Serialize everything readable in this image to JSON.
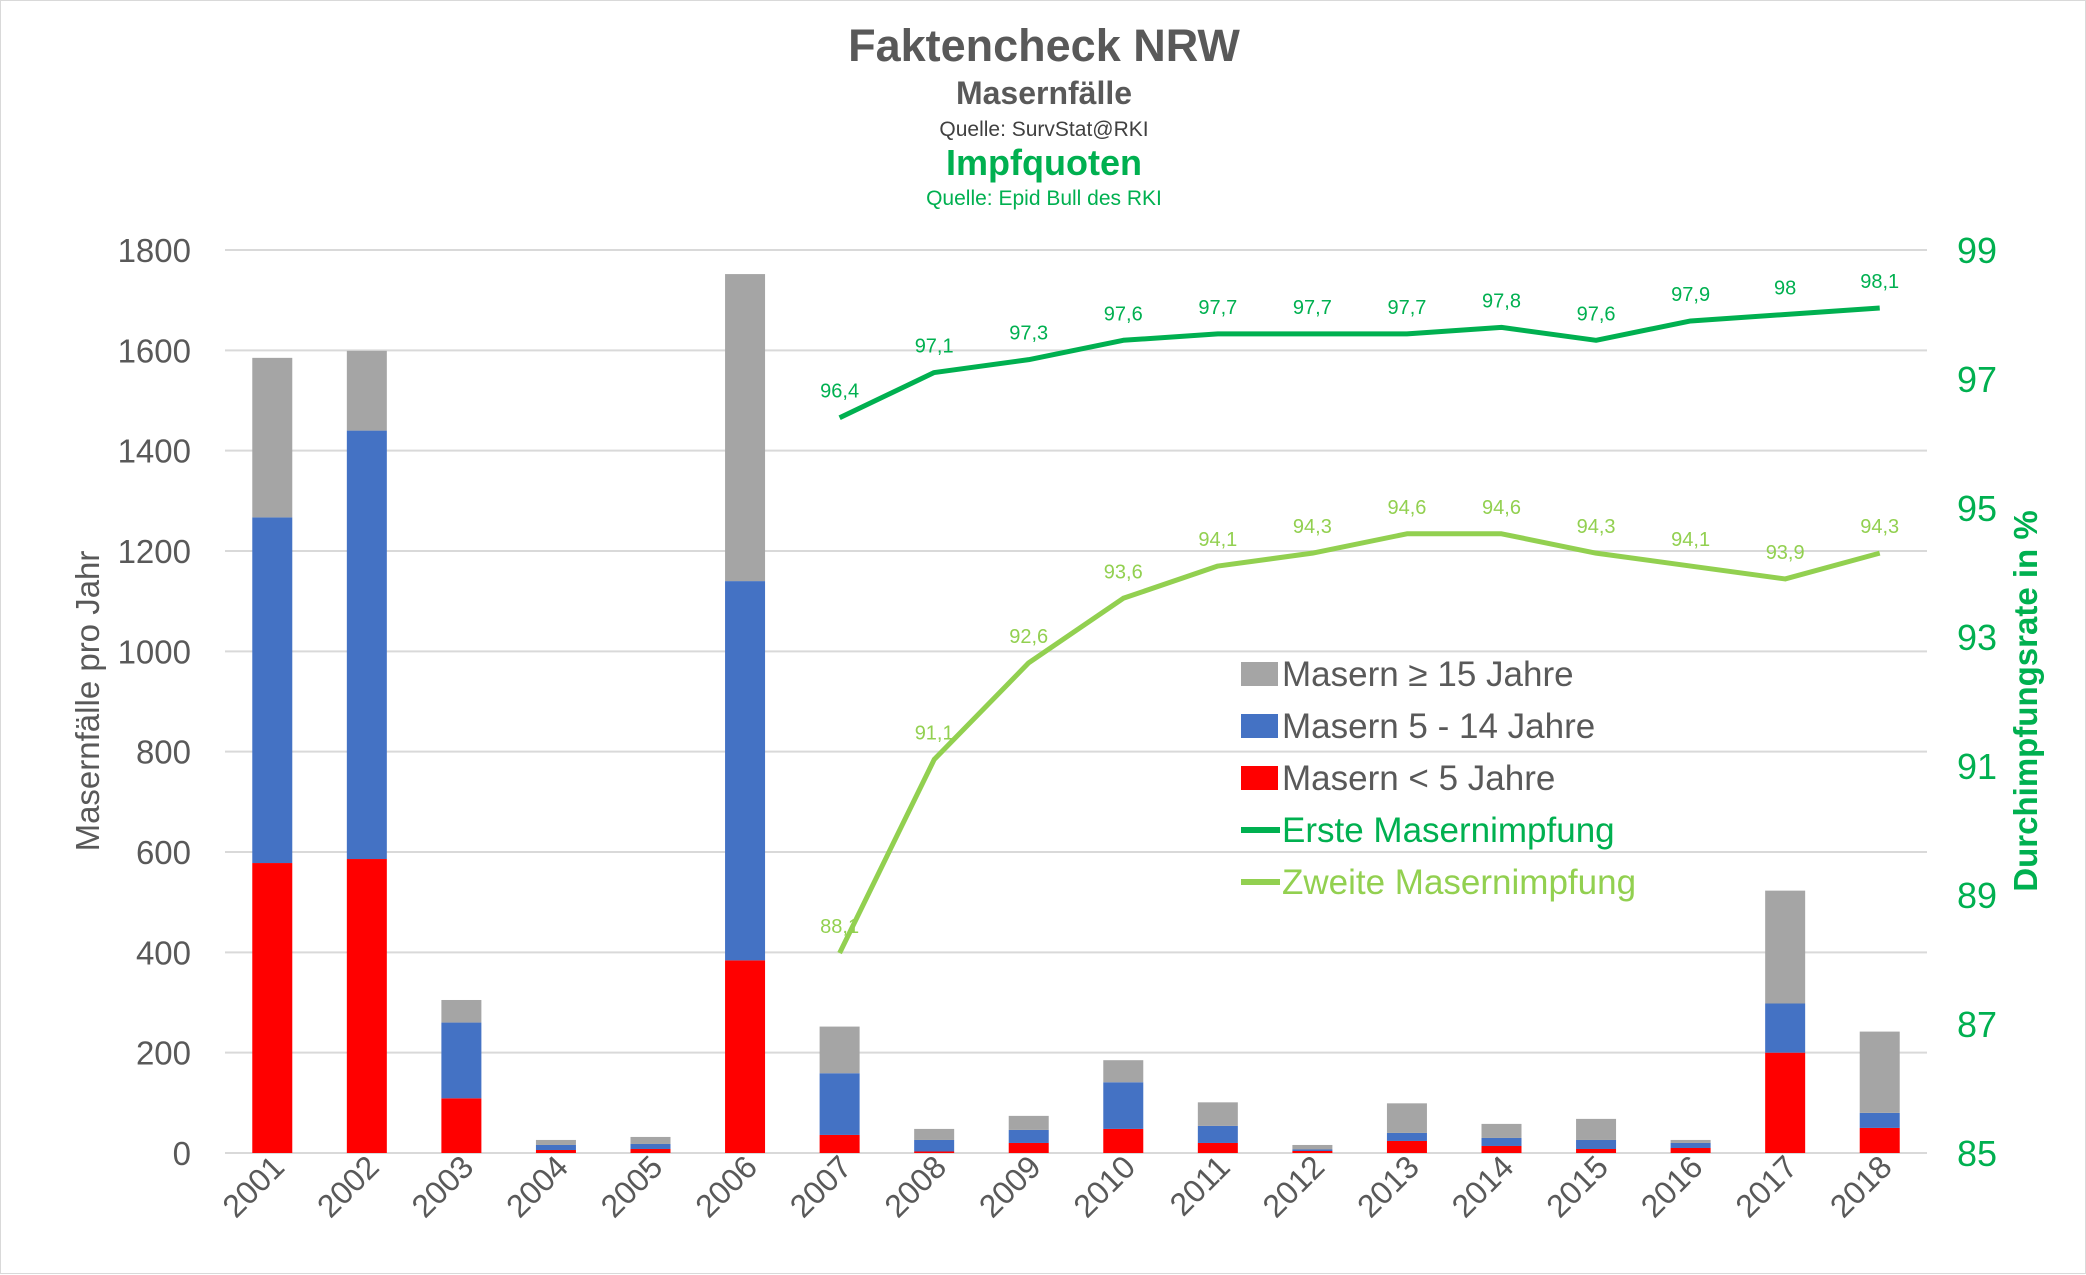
{
  "chart_data": {
    "type": "bar",
    "title": "Faktencheck NRW",
    "subtitle_1": "Masernfälle",
    "source_1": "Quelle: SurvStat@RKI",
    "subtitle_2": "Impfquoten",
    "source_2": "Quelle: Epid Bull des RKI",
    "ylabel": "Masernfälle pro Jahr",
    "y2label": "Durchimpfungsrate in %",
    "ylim": [
      0,
      1800
    ],
    "yticks": [
      "0",
      "200",
      "400",
      "600",
      "800",
      "1000",
      "1200",
      "1400",
      "1600",
      "1800"
    ],
    "y2lim": [
      85,
      99
    ],
    "y2ticks": [
      "85",
      "87",
      "89",
      "91",
      "93",
      "95",
      "97",
      "99"
    ],
    "grid": true,
    "legend_position": "center-right",
    "categories": [
      "2001",
      "2002",
      "2003",
      "2004",
      "2005",
      "2006",
      "2007",
      "2008",
      "2009",
      "2010",
      "2011",
      "2012",
      "2013",
      "2014",
      "2015",
      "2016",
      "2017",
      "2018"
    ],
    "stacked_series": [
      {
        "name": "Masern < 5 Jahre",
        "color": "#ff0000",
        "values": [
          578,
          586,
          109,
          6,
          8,
          384,
          36,
          3,
          20,
          48,
          20,
          4,
          24,
          14,
          8,
          10,
          200,
          50
        ]
      },
      {
        "name": "Masern 5 - 14 Jahre",
        "color": "#4472c4",
        "values": [
          689,
          854,
          151,
          10,
          10,
          756,
          123,
          23,
          26,
          93,
          34,
          3,
          16,
          16,
          18,
          10,
          98,
          30
        ]
      },
      {
        "name": "Masern ≥ 15 Jahre",
        "color": "#a5a5a5",
        "values": [
          318,
          159,
          45,
          10,
          14,
          612,
          93,
          22,
          28,
          44,
          47,
          9,
          59,
          28,
          42,
          6,
          225,
          162
        ]
      }
    ],
    "line_series": [
      {
        "name": "Erste Masernimpfung",
        "color": "#00b050",
        "axis": "right",
        "x": [
          "2007",
          "2008",
          "2009",
          "2010",
          "2011",
          "2012",
          "2013",
          "2014",
          "2015",
          "2016",
          "2017",
          "2018"
        ],
        "values": [
          96.4,
          97.1,
          97.3,
          97.6,
          97.7,
          97.7,
          97.7,
          97.8,
          97.6,
          97.9,
          98,
          98.1
        ],
        "labels": [
          "96,4",
          "97,1",
          "97,3",
          "97,6",
          "97,7",
          "97,7",
          "97,7",
          "97,8",
          "97,6",
          "97,9",
          "98",
          "98,1"
        ]
      },
      {
        "name": "Zweite Masernimpfung",
        "color": "#92d050",
        "axis": "right",
        "x": [
          "2007",
          "2008",
          "2009",
          "2010",
          "2011",
          "2012",
          "2013",
          "2014",
          "2015",
          "2016",
          "2017",
          "2018"
        ],
        "values": [
          88.1,
          91.1,
          92.6,
          93.6,
          94.1,
          94.3,
          94.6,
          94.6,
          94.3,
          94.1,
          93.9,
          94.3
        ],
        "labels": [
          "88,1",
          "91,1",
          "92,6",
          "93,6",
          "94,1",
          "94,3",
          "94,6",
          "94,6",
          "94,3",
          "94,1",
          "93,9",
          "94,3"
        ]
      }
    ],
    "legend_order": [
      "Masern ≥ 15 Jahre",
      "Masern 5 - 14 Jahre",
      "Masern < 5 Jahre",
      "Erste Masernimpfung",
      "Zweite Masernimpfung"
    ],
    "colors": {
      "title": "#595959",
      "axis_text": "#595959",
      "right_axis": "#00b050",
      "grid": "#d9d9d9"
    }
  }
}
